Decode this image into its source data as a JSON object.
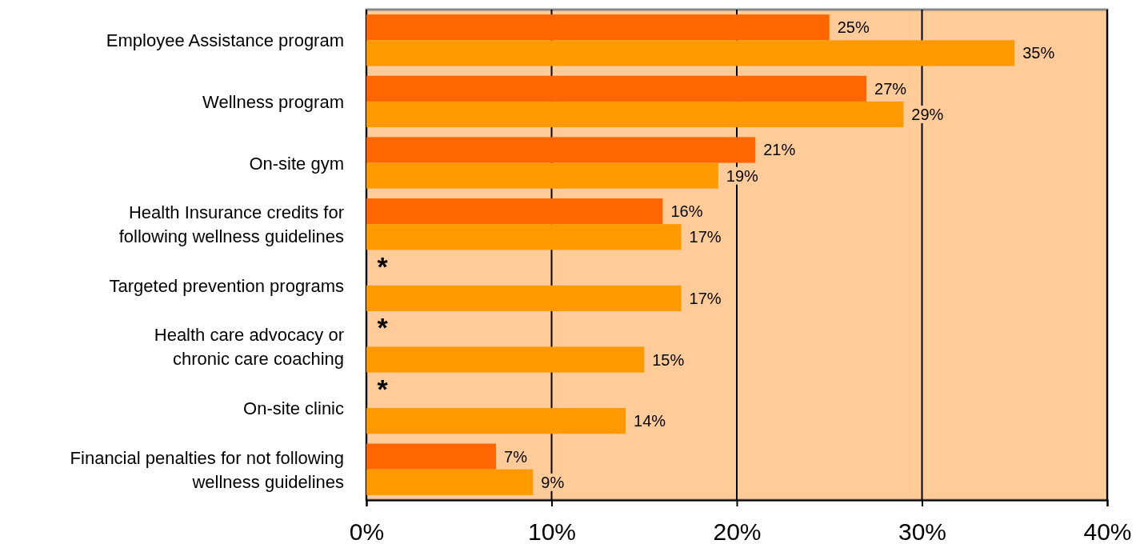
{
  "chart_data": {
    "type": "bar",
    "orientation": "horizontal",
    "categories": [
      "Employee Assistance program",
      "Wellness program",
      "On-site gym",
      "Health Insurance credits for\nfollowing wellness guidelines",
      "Targeted prevention programs",
      "Health care advocacy or\nchronic care coaching",
      "On-site clinic",
      "Financial penalties for not following\nwellness guidelines"
    ],
    "series": [
      {
        "color": "#ff6600",
        "values": [
          25,
          27,
          21,
          16,
          null,
          null,
          null,
          7
        ],
        "value_labels": [
          "25%",
          "27%",
          "21%",
          "16%",
          null,
          null,
          null,
          "7%"
        ]
      },
      {
        "color": "#ff9900",
        "values": [
          35,
          29,
          19,
          17,
          17,
          15,
          14,
          9
        ],
        "value_labels": [
          "35%",
          "29%",
          "19%",
          "17%",
          "17%",
          "15%",
          "14%",
          "9%"
        ]
      }
    ],
    "xlim": [
      0,
      40
    ],
    "xticks": [
      {
        "value": 0,
        "label": "0%"
      },
      {
        "value": 10,
        "label": "10%"
      },
      {
        "value": 20,
        "label": "20%"
      },
      {
        "value": 30,
        "label": "30%"
      },
      {
        "value": 40,
        "label": "40%"
      }
    ],
    "grid": "x",
    "annotations": [
      {
        "text": "*",
        "y": "Targeted prevention programs"
      },
      {
        "text": "*",
        "y": "Health care advocacy or\nchronic care coaching"
      },
      {
        "text": "*",
        "y": "On-site clinic"
      }
    ]
  }
}
